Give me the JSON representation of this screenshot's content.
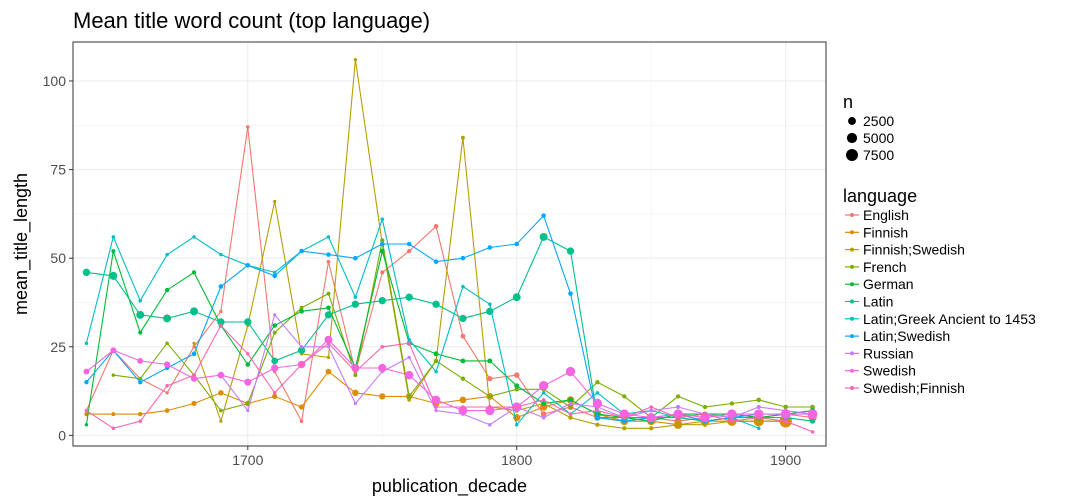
{
  "chart_data": {
    "type": "line",
    "title": "Mean title word count (top language)",
    "xlabel": "publication_decade",
    "ylabel": "mean_title_length",
    "xlim": [
      1635,
      1915
    ],
    "ylim": [
      -3,
      111
    ],
    "x_ticks": [
      1700,
      1800,
      1900
    ],
    "y_ticks": [
      0,
      25,
      50,
      75,
      100
    ],
    "grid": true,
    "legend_position": "right",
    "size_legend": {
      "title": "n",
      "entries": [
        {
          "label": "2500",
          "value": 2500
        },
        {
          "label": "5000",
          "value": 5000
        },
        {
          "label": "7500",
          "value": 7500
        }
      ]
    },
    "color_legend_title": "language",
    "series": [
      {
        "name": "English",
        "color": "#F8766D",
        "x": [
          1640,
          1650,
          1660,
          1670,
          1680,
          1690,
          1700,
          1710,
          1720,
          1730,
          1740,
          1750,
          1760,
          1770,
          1780,
          1790,
          1800,
          1810,
          1820,
          1830,
          1840,
          1850,
          1860,
          1870,
          1880,
          1890,
          1900,
          1910
        ],
        "y": [
          7,
          24,
          16,
          12,
          25,
          35,
          87,
          18,
          4,
          49,
          18,
          46,
          52,
          59,
          28,
          16,
          17,
          6,
          8,
          5,
          4,
          5,
          4,
          5,
          6,
          5,
          6,
          5
        ],
        "n": [
          50,
          60,
          50,
          60,
          80,
          100,
          120,
          100,
          100,
          150,
          200,
          250,
          300,
          400,
          500,
          600,
          800,
          900,
          1000,
          1200,
          1400,
          1600,
          1800,
          2000,
          2200,
          2400,
          2600,
          2800
        ]
      },
      {
        "name": "Finnish",
        "color": "#DE8C00",
        "x": [
          1640,
          1650,
          1660,
          1670,
          1680,
          1690,
          1700,
          1710,
          1720,
          1730,
          1740,
          1750,
          1760,
          1770,
          1780,
          1790,
          1800,
          1810,
          1820,
          1830,
          1840,
          1850,
          1860,
          1870,
          1880,
          1890,
          1900
        ],
        "y": [
          6,
          6,
          6,
          7,
          9,
          12,
          9,
          11,
          8,
          18,
          12,
          11,
          11,
          9,
          10,
          11,
          5,
          8,
          10,
          6,
          4,
          4,
          3,
          4,
          4,
          4,
          4
        ],
        "n": [
          300,
          200,
          300,
          400,
          600,
          800,
          900,
          700,
          700,
          900,
          1300,
          1200,
          1300,
          1400,
          1500,
          1600,
          1800,
          1900,
          2100,
          2200,
          2500,
          2600,
          2900,
          3400,
          4000,
          5100,
          8200
        ]
      },
      {
        "name": "Finnish;Swedish",
        "color": "#B79F00",
        "x": [
          1680,
          1690,
          1700,
          1710,
          1720,
          1730,
          1740,
          1750,
          1760,
          1770,
          1780,
          1790,
          1800,
          1810,
          1820,
          1830,
          1840,
          1850,
          1860,
          1870,
          1880,
          1890,
          1900
        ],
        "y": [
          26,
          4,
          31,
          66,
          23,
          22,
          106,
          54,
          10,
          21,
          84,
          8,
          7,
          9,
          5,
          3,
          2,
          2,
          3,
          3,
          4,
          4,
          4
        ],
        "n": [
          50,
          50,
          50,
          60,
          60,
          80,
          80,
          100,
          150,
          200,
          200,
          200,
          300,
          300,
          300,
          300,
          300,
          300,
          300,
          300,
          300,
          300,
          400
        ]
      },
      {
        "name": "French",
        "color": "#7CAE00",
        "x": [
          1650,
          1660,
          1670,
          1680,
          1690,
          1700,
          1710,
          1720,
          1730,
          1740,
          1750,
          1760,
          1770,
          1780,
          1790,
          1800,
          1810,
          1820,
          1830,
          1840,
          1850,
          1860,
          1870,
          1880,
          1890,
          1900,
          1910
        ],
        "y": [
          17,
          16,
          26,
          17,
          7,
          9,
          29,
          36,
          40,
          17,
          55,
          11,
          21,
          16,
          11,
          13,
          13,
          8,
          15,
          11,
          5,
          11,
          8,
          9,
          10,
          8,
          8
        ],
        "n": [
          100,
          100,
          100,
          150,
          150,
          150,
          200,
          200,
          200,
          200,
          300,
          300,
          300,
          300,
          300,
          300,
          300,
          300,
          300,
          300,
          300,
          300,
          300,
          300,
          400,
          400,
          400
        ]
      },
      {
        "name": "German",
        "color": "#00BA38",
        "x": [
          1640,
          1650,
          1660,
          1670,
          1680,
          1690,
          1700,
          1710,
          1720,
          1730,
          1740,
          1750,
          1760,
          1770,
          1780,
          1790,
          1800,
          1810,
          1820,
          1830,
          1840,
          1850,
          1860,
          1870,
          1880,
          1890,
          1900,
          1910
        ],
        "y": [
          3,
          52,
          29,
          41,
          46,
          31,
          20,
          31,
          35,
          36,
          19,
          52,
          26,
          23,
          21,
          21,
          14,
          9,
          10,
          6,
          5,
          4,
          6,
          6,
          6,
          5,
          6,
          7
        ],
        "n": [
          100,
          200,
          200,
          300,
          300,
          400,
          400,
          400,
          400,
          400,
          400,
          500,
          500,
          500,
          500,
          500,
          500,
          500,
          600,
          600,
          600,
          600,
          700,
          700,
          700,
          700,
          700,
          700
        ]
      },
      {
        "name": "Latin",
        "color": "#00C08B",
        "x": [
          1640,
          1650,
          1660,
          1670,
          1680,
          1690,
          1700,
          1710,
          1720,
          1730,
          1740,
          1750,
          1760,
          1770,
          1780,
          1790,
          1800,
          1810,
          1820,
          1830,
          1840,
          1850,
          1860,
          1870,
          1880,
          1890,
          1900,
          1910
        ],
        "y": [
          46,
          45,
          34,
          33,
          35,
          32,
          32,
          21,
          24,
          34,
          37,
          38,
          39,
          37,
          33,
          35,
          39,
          56,
          52,
          5,
          5,
          5,
          5,
          4,
          5,
          5,
          5,
          4
        ],
        "n": [
          2000,
          2500,
          2500,
          2500,
          2500,
          2000,
          2000,
          1500,
          2000,
          2000,
          2000,
          2000,
          2000,
          2000,
          2000,
          2000,
          2500,
          2500,
          2000,
          1000,
          800,
          700,
          600,
          600,
          600,
          600,
          600,
          600
        ]
      },
      {
        "name": "Latin;Greek Ancient to 1453",
        "color": "#00BFC4",
        "x": [
          1640,
          1650,
          1660,
          1670,
          1680,
          1690,
          1700,
          1710,
          1720,
          1730,
          1740,
          1750,
          1760,
          1770,
          1780,
          1790,
          1800,
          1810,
          1820,
          1830,
          1840,
          1850,
          1860,
          1870,
          1880,
          1890
        ],
        "y": [
          26,
          56,
          38,
          51,
          56,
          51,
          48,
          46,
          52,
          56,
          39,
          61,
          27,
          18,
          42,
          37,
          3,
          12,
          6,
          12,
          6,
          7,
          5,
          6,
          5,
          2
        ],
        "n": [
          100,
          100,
          100,
          100,
          100,
          100,
          100,
          100,
          100,
          100,
          100,
          100,
          100,
          100,
          100,
          100,
          100,
          100,
          100,
          100,
          100,
          100,
          100,
          100,
          100,
          100
        ]
      },
      {
        "name": "Latin;Swedish",
        "color": "#00A9FF",
        "x": [
          1640,
          1650,
          1660,
          1670,
          1680,
          1690,
          1700,
          1710,
          1720,
          1730,
          1740,
          1750,
          1760,
          1770,
          1780,
          1790,
          1800,
          1810,
          1820,
          1830,
          1840,
          1850,
          1860,
          1870,
          1880,
          1890,
          1900
        ],
        "y": [
          15,
          24,
          15,
          19,
          23,
          42,
          48,
          45,
          52,
          51,
          50,
          54,
          54,
          49,
          50,
          53,
          54,
          62,
          40,
          5,
          4,
          5,
          6,
          4,
          5,
          6,
          6
        ],
        "n": [
          300,
          300,
          300,
          300,
          400,
          400,
          400,
          400,
          400,
          400,
          400,
          400,
          400,
          400,
          400,
          400,
          400,
          400,
          400,
          400,
          400,
          400,
          400,
          400,
          400,
          400,
          400
        ]
      },
      {
        "name": "Russian",
        "color": "#C77CFF",
        "x": [
          1690,
          1700,
          1710,
          1720,
          1730,
          1740,
          1750,
          1760,
          1770,
          1780,
          1790,
          1800,
          1810,
          1820,
          1830,
          1840,
          1850,
          1860,
          1870,
          1880,
          1890,
          1900,
          1910
        ],
        "y": [
          17,
          7,
          34,
          25,
          25,
          9,
          18,
          22,
          7,
          6,
          3,
          8,
          5,
          9,
          8,
          5,
          7,
          8,
          6,
          5,
          8,
          7,
          6
        ],
        "n": [
          50,
          50,
          50,
          60,
          60,
          60,
          60,
          80,
          80,
          100,
          100,
          100,
          150,
          150,
          200,
          200,
          200,
          300,
          300,
          300,
          300,
          300,
          300
        ]
      },
      {
        "name": "Swedish",
        "color": "#F564E3",
        "x": [
          1640,
          1650,
          1660,
          1670,
          1680,
          1690,
          1700,
          1710,
          1720,
          1730,
          1740,
          1750,
          1760,
          1770,
          1780,
          1790,
          1800,
          1810,
          1820,
          1830,
          1840,
          1850,
          1860,
          1870,
          1880,
          1890,
          1900,
          1910
        ],
        "y": [
          18,
          24,
          21,
          20,
          16,
          17,
          15,
          19,
          20,
          27,
          19,
          19,
          17,
          10,
          7,
          7,
          8,
          14,
          18,
          9,
          6,
          5,
          6,
          5,
          6,
          6,
          6,
          6
        ],
        "n": [
          1000,
          1000,
          1000,
          1200,
          1200,
          1500,
          1800,
          2000,
          2200,
          2400,
          2600,
          2800,
          3000,
          3200,
          3500,
          3800,
          4000,
          4000,
          4000,
          4000,
          4000,
          4000,
          4000,
          4000,
          4000,
          4000,
          4500,
          4500
        ]
      },
      {
        "name": "Swedish;Finnish",
        "color": "#FF64B0",
        "x": [
          1640,
          1650,
          1660,
          1670,
          1680,
          1690,
          1700,
          1710,
          1720,
          1730,
          1740,
          1750,
          1760,
          1770,
          1780,
          1790,
          1800,
          1810,
          1820,
          1830,
          1840,
          1850,
          1860,
          1870,
          1880,
          1890,
          1900,
          1910
        ],
        "y": [
          7,
          2,
          4,
          14,
          17,
          31,
          23,
          12,
          20,
          26,
          18,
          25,
          26,
          8,
          8,
          8,
          8,
          10,
          6,
          7,
          5,
          8,
          5,
          6,
          4,
          5,
          4,
          1
        ],
        "n": [
          100,
          100,
          100,
          100,
          100,
          100,
          100,
          100,
          100,
          100,
          100,
          100,
          100,
          100,
          100,
          100,
          100,
          100,
          100,
          100,
          100,
          100,
          100,
          100,
          100,
          100,
          100,
          100
        ]
      }
    ]
  }
}
